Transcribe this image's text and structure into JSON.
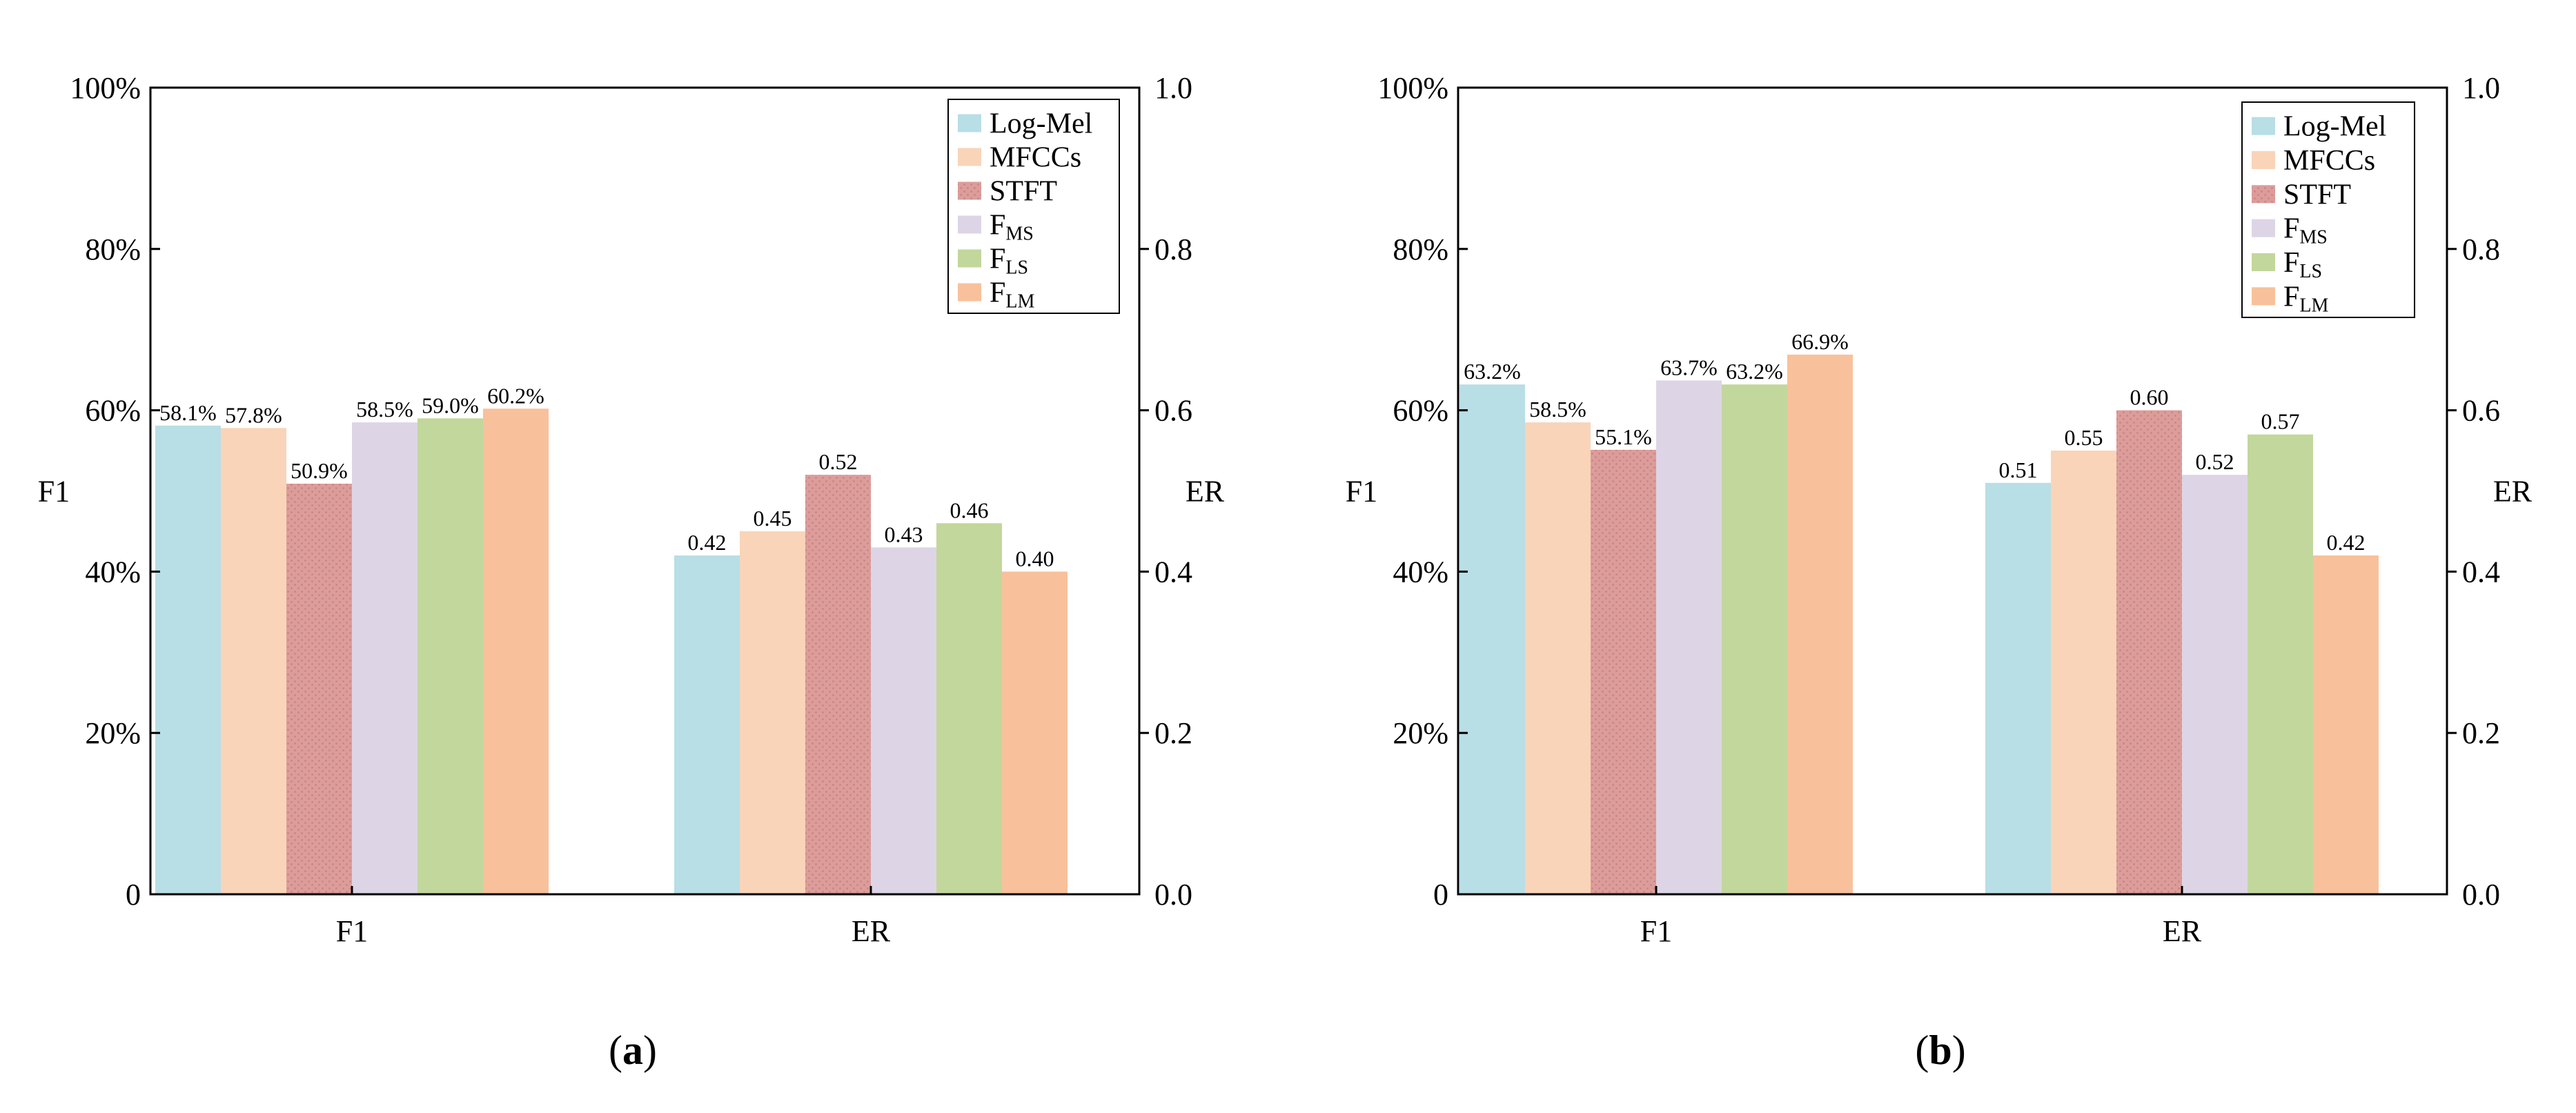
{
  "figure": {
    "colors": {
      "Log-Mel": "#b8dee6",
      "MFCCs": "#f9d4b8",
      "STFT": "#dc9d9a",
      "FMS": "#ddd5e6",
      "FLS": "#c2d79c",
      "FLM": "#f8c19b"
    },
    "stft_hatch_color": "#c98481"
  },
  "chart_data": [
    {
      "type": "bar",
      "panel_id": "a",
      "caption": {
        "open": "(",
        "letter": "a",
        "close": ")"
      },
      "categories": [
        "F1",
        "ER"
      ],
      "ylabel_left": "F1",
      "ylabel_right": "ER",
      "yticks_left": [
        "0",
        "20%",
        "40%",
        "60%",
        "80%",
        "100%"
      ],
      "yticks_right": [
        "0.0",
        "0.2",
        "0.4",
        "0.6",
        "0.8",
        "1.0"
      ],
      "ylim": [
        0,
        1
      ],
      "legend_position": "top-right",
      "series": [
        {
          "key": "Log-Mel",
          "name": "Log-Mel",
          "sub": "",
          "values": [
            0.581,
            0.42
          ],
          "labels": [
            "58.1%",
            "0.42"
          ]
        },
        {
          "key": "MFCCs",
          "name": "MFCCs",
          "sub": "",
          "values": [
            0.578,
            0.45
          ],
          "labels": [
            "57.8%",
            "0.45"
          ]
        },
        {
          "key": "STFT",
          "name": "STFT",
          "sub": "",
          "values": [
            0.509,
            0.52
          ],
          "labels": [
            "50.9%",
            "0.52"
          ]
        },
        {
          "key": "FMS",
          "name": "F",
          "sub": "MS",
          "values": [
            0.585,
            0.43
          ],
          "labels": [
            "58.5%",
            "0.43"
          ]
        },
        {
          "key": "FLS",
          "name": "F",
          "sub": "LS",
          "values": [
            0.59,
            0.46
          ],
          "labels": [
            "59.0%",
            "0.46"
          ]
        },
        {
          "key": "FLM",
          "name": "F",
          "sub": "LM",
          "values": [
            0.602,
            0.4
          ],
          "labels": [
            "60.2%",
            "0.40"
          ]
        }
      ]
    },
    {
      "type": "bar",
      "panel_id": "b",
      "caption": {
        "open": "(",
        "letter": "b",
        "close": ")"
      },
      "categories": [
        "F1",
        "ER"
      ],
      "ylabel_left": "F1",
      "ylabel_right": "ER",
      "yticks_left": [
        "0",
        "20%",
        "40%",
        "60%",
        "80%",
        "100%"
      ],
      "yticks_right": [
        "0.0",
        "0.2",
        "0.4",
        "0.6",
        "0.8",
        "1.0"
      ],
      "ylim": [
        0,
        1
      ],
      "legend_position": "top-right",
      "series": [
        {
          "key": "Log-Mel",
          "name": "Log-Mel",
          "sub": "",
          "values": [
            0.632,
            0.51
          ],
          "labels": [
            "63.2%",
            "0.51"
          ]
        },
        {
          "key": "MFCCs",
          "name": "MFCCs",
          "sub": "",
          "values": [
            0.585,
            0.55
          ],
          "labels": [
            "58.5%",
            "0.55"
          ]
        },
        {
          "key": "STFT",
          "name": "STFT",
          "sub": "",
          "values": [
            0.551,
            0.6
          ],
          "labels": [
            "55.1%",
            "0.60"
          ]
        },
        {
          "key": "FMS",
          "name": "F",
          "sub": "MS",
          "values": [
            0.637,
            0.52
          ],
          "labels": [
            "63.7%",
            "0.52"
          ]
        },
        {
          "key": "FLS",
          "name": "F",
          "sub": "LS",
          "values": [
            0.632,
            0.57
          ],
          "labels": [
            "63.2%",
            "0.57"
          ]
        },
        {
          "key": "FLM",
          "name": "F",
          "sub": "LM",
          "values": [
            0.669,
            0.42
          ],
          "labels": [
            "66.9%",
            "0.42"
          ]
        }
      ]
    }
  ]
}
